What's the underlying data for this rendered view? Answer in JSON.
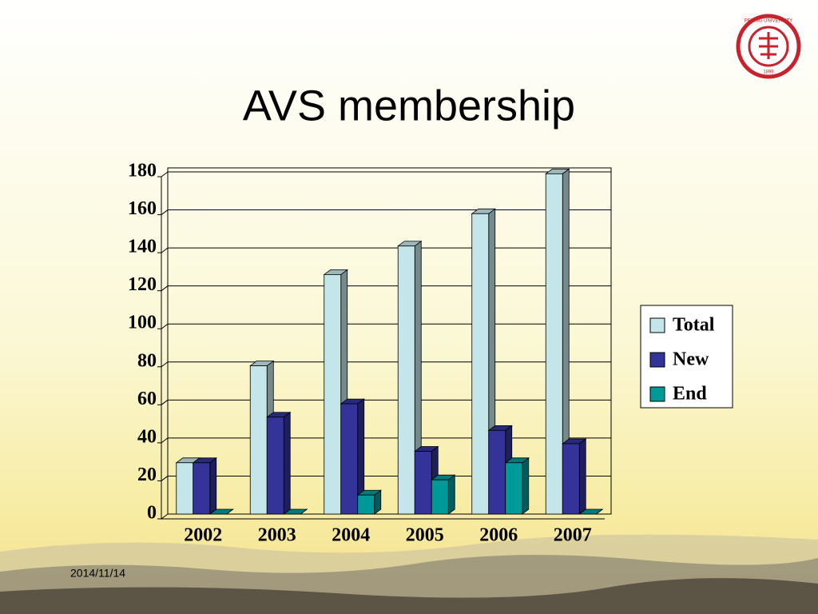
{
  "chart_data": {
    "type": "bar",
    "title": "AVS membership",
    "categories": [
      "2002",
      "2003",
      "2004",
      "2005",
      "2006",
      "2007"
    ],
    "series": [
      {
        "name": "Total",
        "color": "#c4e6ea",
        "values": [
          27,
          78,
          126,
          141,
          158,
          179
        ]
      },
      {
        "name": "New",
        "color": "#333399",
        "values": [
          27,
          51,
          58,
          33,
          44,
          37
        ]
      },
      {
        "name": "End",
        "color": "#009999",
        "values": [
          0,
          0,
          10,
          18,
          27,
          0
        ]
      }
    ],
    "ylim": [
      0,
      180
    ],
    "yticks": [
      0,
      20,
      40,
      60,
      80,
      100,
      120,
      140,
      160,
      180
    ],
    "grid": true,
    "legend": "right"
  },
  "footer": {
    "date": "2014/11/14"
  },
  "logo": {
    "name": "PEKING UNIVERSITY",
    "year": "1898"
  }
}
